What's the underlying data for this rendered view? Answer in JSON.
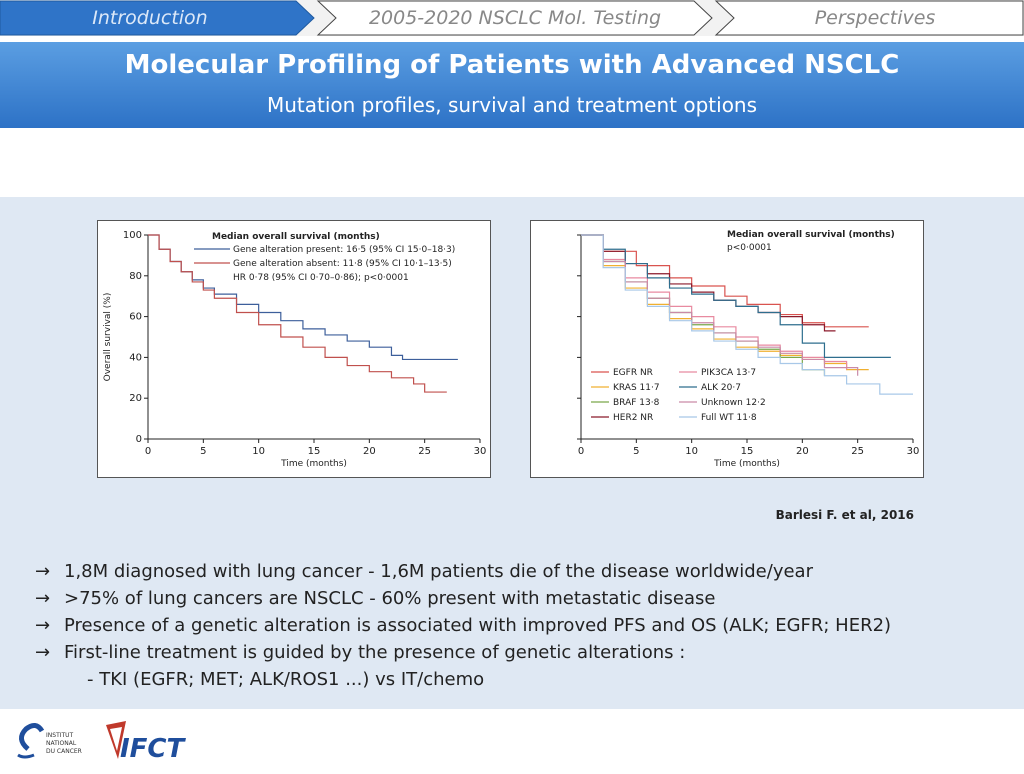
{
  "nav": {
    "tabs": [
      {
        "label": "Introduction",
        "active": true
      },
      {
        "label": "2005-2020 NSCLC Mol. Testing",
        "active": false
      },
      {
        "label": "Perspectives",
        "active": false
      }
    ]
  },
  "header": {
    "title": "Molecular Profiling of Patients with Advanced NSCLC",
    "subtitle": "Mutation profiles, survival and treatment options"
  },
  "colors": {
    "banner": "#2d72c6",
    "nav_active": "#2f74c8",
    "content_bg": "#dfe8f3"
  },
  "chart_data": [
    {
      "type": "line",
      "title": "Median overall survival (months)",
      "xlabel": "Time (months)",
      "ylabel": "Overall survival (%)",
      "xlim": [
        0,
        30
      ],
      "ylim": [
        0,
        100
      ],
      "x_ticks": [
        "0",
        "5",
        "10",
        "15",
        "20",
        "25",
        "30"
      ],
      "y_ticks": [
        "0",
        "20",
        "40",
        "60",
        "80",
        "100"
      ],
      "legend_position": "top",
      "series": [
        {
          "name": "Gene alteration present: 16·5 (95% CI 15·0–18·3)",
          "color": "#3d5f9b",
          "x": [
            0,
            1,
            2,
            3,
            4,
            5,
            6,
            8,
            10,
            12,
            14,
            16,
            18,
            20,
            22,
            23,
            25,
            28
          ],
          "y": [
            100,
            93,
            87,
            82,
            78,
            74,
            71,
            66,
            62,
            58,
            54,
            51,
            48,
            45,
            41,
            39,
            39,
            39
          ]
        },
        {
          "name": "Gene alteration absent: 11·8 (95% CI 10·1–13·5)",
          "color": "#c0504d",
          "x": [
            0,
            1,
            2,
            3,
            4,
            5,
            6,
            8,
            10,
            12,
            14,
            16,
            18,
            20,
            22,
            24,
            25,
            27
          ],
          "y": [
            100,
            93,
            87,
            82,
            77,
            73,
            69,
            62,
            56,
            50,
            45,
            40,
            36,
            33,
            30,
            27,
            23,
            23
          ]
        }
      ],
      "annotation": "HR 0·78 (95% CI 0·70–0·86); p<0·0001"
    },
    {
      "type": "line",
      "title": "Median overall survival (months)",
      "subtitle": "p<0·0001",
      "xlabel": "Time (months)",
      "xlim": [
        0,
        30
      ],
      "ylim": [
        0,
        100
      ],
      "x_ticks": [
        "0",
        "5",
        "10",
        "15",
        "20",
        "25",
        "30"
      ],
      "legend_position": "bottom-left",
      "series": [
        {
          "name": "EGFR NR",
          "color": "#d9534f",
          "x": [
            0,
            2,
            5,
            8,
            10,
            13,
            15,
            18,
            20,
            22,
            24,
            26
          ],
          "y": [
            100,
            92,
            85,
            79,
            75,
            70,
            66,
            61,
            57,
            55,
            55,
            55
          ]
        },
        {
          "name": "KRAS 11·7",
          "color": "#f0b030",
          "x": [
            0,
            2,
            4,
            6,
            8,
            10,
            12,
            14,
            16,
            18,
            20,
            22,
            24,
            26
          ],
          "y": [
            100,
            85,
            74,
            66,
            59,
            54,
            49,
            45,
            43,
            41,
            39,
            37,
            34,
            34
          ]
        },
        {
          "name": "BRAF 13·8",
          "color": "#7aa84b",
          "x": [
            0,
            2,
            4,
            6,
            8,
            10,
            12,
            14,
            16,
            18,
            20,
            22
          ],
          "y": [
            100,
            87,
            77,
            69,
            62,
            56,
            52,
            48,
            44,
            40,
            34,
            31
          ]
        },
        {
          "name": "HER2 NR",
          "color": "#8b1a2b",
          "x": [
            0,
            2,
            4,
            6,
            8,
            10,
            12,
            14,
            16,
            18,
            20,
            22,
            23
          ],
          "y": [
            100,
            92,
            86,
            81,
            76,
            72,
            68,
            65,
            62,
            60,
            56,
            53,
            53
          ]
        },
        {
          "name": "PIK3CA 13·7",
          "color": "#e88aa0",
          "x": [
            0,
            2,
            4,
            6,
            8,
            10,
            12,
            14,
            16,
            18,
            20,
            22,
            24
          ],
          "y": [
            100,
            88,
            79,
            72,
            65,
            60,
            55,
            50,
            46,
            43,
            40,
            38,
            34
          ]
        },
        {
          "name": "ALK 20·7",
          "color": "#2e6e8e",
          "x": [
            0,
            2,
            4,
            6,
            8,
            10,
            12,
            14,
            16,
            18,
            20,
            22,
            25,
            28
          ],
          "y": [
            100,
            93,
            86,
            79,
            74,
            71,
            68,
            65,
            62,
            56,
            47,
            40,
            40,
            40
          ]
        },
        {
          "name": "Unknown 12·2",
          "color": "#c98aa8",
          "x": [
            0,
            2,
            4,
            6,
            8,
            10,
            12,
            14,
            16,
            18,
            20,
            22,
            25
          ],
          "y": [
            100,
            87,
            77,
            69,
            62,
            57,
            52,
            48,
            45,
            42,
            39,
            35,
            31
          ]
        },
        {
          "name": "Full WT 11·8",
          "color": "#a8c8e8",
          "x": [
            0,
            2,
            4,
            6,
            8,
            10,
            12,
            14,
            16,
            18,
            20,
            22,
            24,
            27,
            30
          ],
          "y": [
            100,
            84,
            73,
            65,
            58,
            53,
            48,
            44,
            40,
            37,
            34,
            31,
            27,
            22,
            22
          ]
        }
      ]
    }
  ],
  "citation": "Barlesi F. et al, 2016",
  "bullets": [
    {
      "arrow": "→",
      "text": "1,8M diagnosed with lung cancer - 1,6M patients die of the disease worldwide/year"
    },
    {
      "arrow": "→",
      "text": ">75% of lung cancers are NSCLC - 60% present with metastatic disease"
    },
    {
      "arrow": "→",
      "text": "Presence of a genetic alteration is associated with improved PFS and OS (ALK; EGFR; HER2)"
    },
    {
      "arrow": "→",
      "text": "First-line treatment is guided by the presence of genetic alterations :"
    }
  ],
  "sub_bullet": "- TKI (EGFR; MET; ALK/ROS1 ...) vs IT/chemo",
  "logos": {
    "inca_lines": [
      "INSTITUT",
      "NATIONAL",
      "DU CANCER"
    ],
    "ifct_text": "IFCT"
  }
}
